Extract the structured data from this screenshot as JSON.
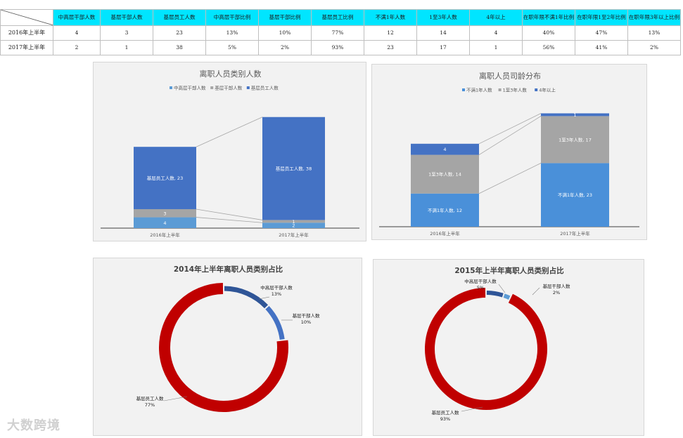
{
  "table": {
    "headers": [
      "中高层干部人数",
      "基层干部人数",
      "基层员工人数",
      "中高层干部比例",
      "基层干部比例",
      "基层员工比例",
      "不满1年人数",
      "1至3年人数",
      "4年以上",
      "在职年限不满1年比例",
      "在职年限1至2年比例",
      "在职年限3年以上比例"
    ],
    "rows": [
      {
        "label": "2016年上半年",
        "cells": [
          "4",
          "3",
          "23",
          "13%",
          "10%",
          "77%",
          "12",
          "14",
          "4",
          "40%",
          "47%",
          "13%"
        ]
      },
      {
        "label": "2017年上半年",
        "cells": [
          "2",
          "1",
          "38",
          "5%",
          "2%",
          "93%",
          "23",
          "17",
          "1",
          "56%",
          "41%",
          "2%"
        ]
      }
    ]
  },
  "chart_data": [
    {
      "type": "bar",
      "stacked": true,
      "title": "离职人员类别人数",
      "categories": [
        "2016年上半年",
        "2017年上半年"
      ],
      "legend": "top",
      "series": [
        {
          "name": "中高层干部人数",
          "values": [
            4,
            2
          ],
          "color": "#5b9bd5"
        },
        {
          "name": "基层干部人数",
          "values": [
            3,
            1
          ],
          "color": "#a5a5a5"
        },
        {
          "name": "基层员工人数",
          "values": [
            23,
            38
          ],
          "color": "#4472c4"
        }
      ],
      "labels": [
        [
          "4",
          "3",
          "基层员工人数, 23"
        ],
        [
          "2",
          "1",
          "基层员工人数, 38"
        ]
      ],
      "ylim": [
        0,
        42
      ]
    },
    {
      "type": "bar",
      "stacked": true,
      "title": "离职人员司龄分布",
      "categories": [
        "2016年上半年",
        "2017年上半年"
      ],
      "legend": "top",
      "series": [
        {
          "name": "不满1年人数",
          "values": [
            12,
            23
          ],
          "color": "#4a90d9"
        },
        {
          "name": "1至3年人数",
          "values": [
            14,
            17
          ],
          "color": "#a5a5a5"
        },
        {
          "name": "4年以上",
          "values": [
            4,
            1
          ],
          "color": "#4472c4"
        }
      ],
      "labels": [
        [
          "不满1年人数, 12",
          "1至3年人数, 14",
          "4"
        ],
        [
          "不满1年人数, 23",
          "1至3年人数, 17",
          "1"
        ]
      ],
      "ylim": [
        0,
        42
      ]
    },
    {
      "type": "pie",
      "donut": true,
      "title": "2014年上半年离职人员类别占比",
      "slices": [
        {
          "name": "中高层干部人数",
          "value": 13,
          "label": "13%",
          "color": "#2f5597"
        },
        {
          "name": "基层干部人数",
          "value": 10,
          "label": "10%",
          "color": "#4472c4"
        },
        {
          "name": "基层员工人数",
          "value": 77,
          "label": "77%",
          "color": "#c00000"
        }
      ]
    },
    {
      "type": "pie",
      "donut": true,
      "title": "2015年上半年离职人员类别占比",
      "slices": [
        {
          "name": "中高层干部人数",
          "value": 5,
          "label": "5%",
          "color": "#2f5597"
        },
        {
          "name": "基层干部人数",
          "value": 2,
          "label": "2%",
          "color": "#5b9bd5"
        },
        {
          "name": "基层员工人数",
          "value": 93,
          "label": "93%",
          "color": "#c00000"
        }
      ]
    }
  ],
  "watermark": "大数跨境"
}
